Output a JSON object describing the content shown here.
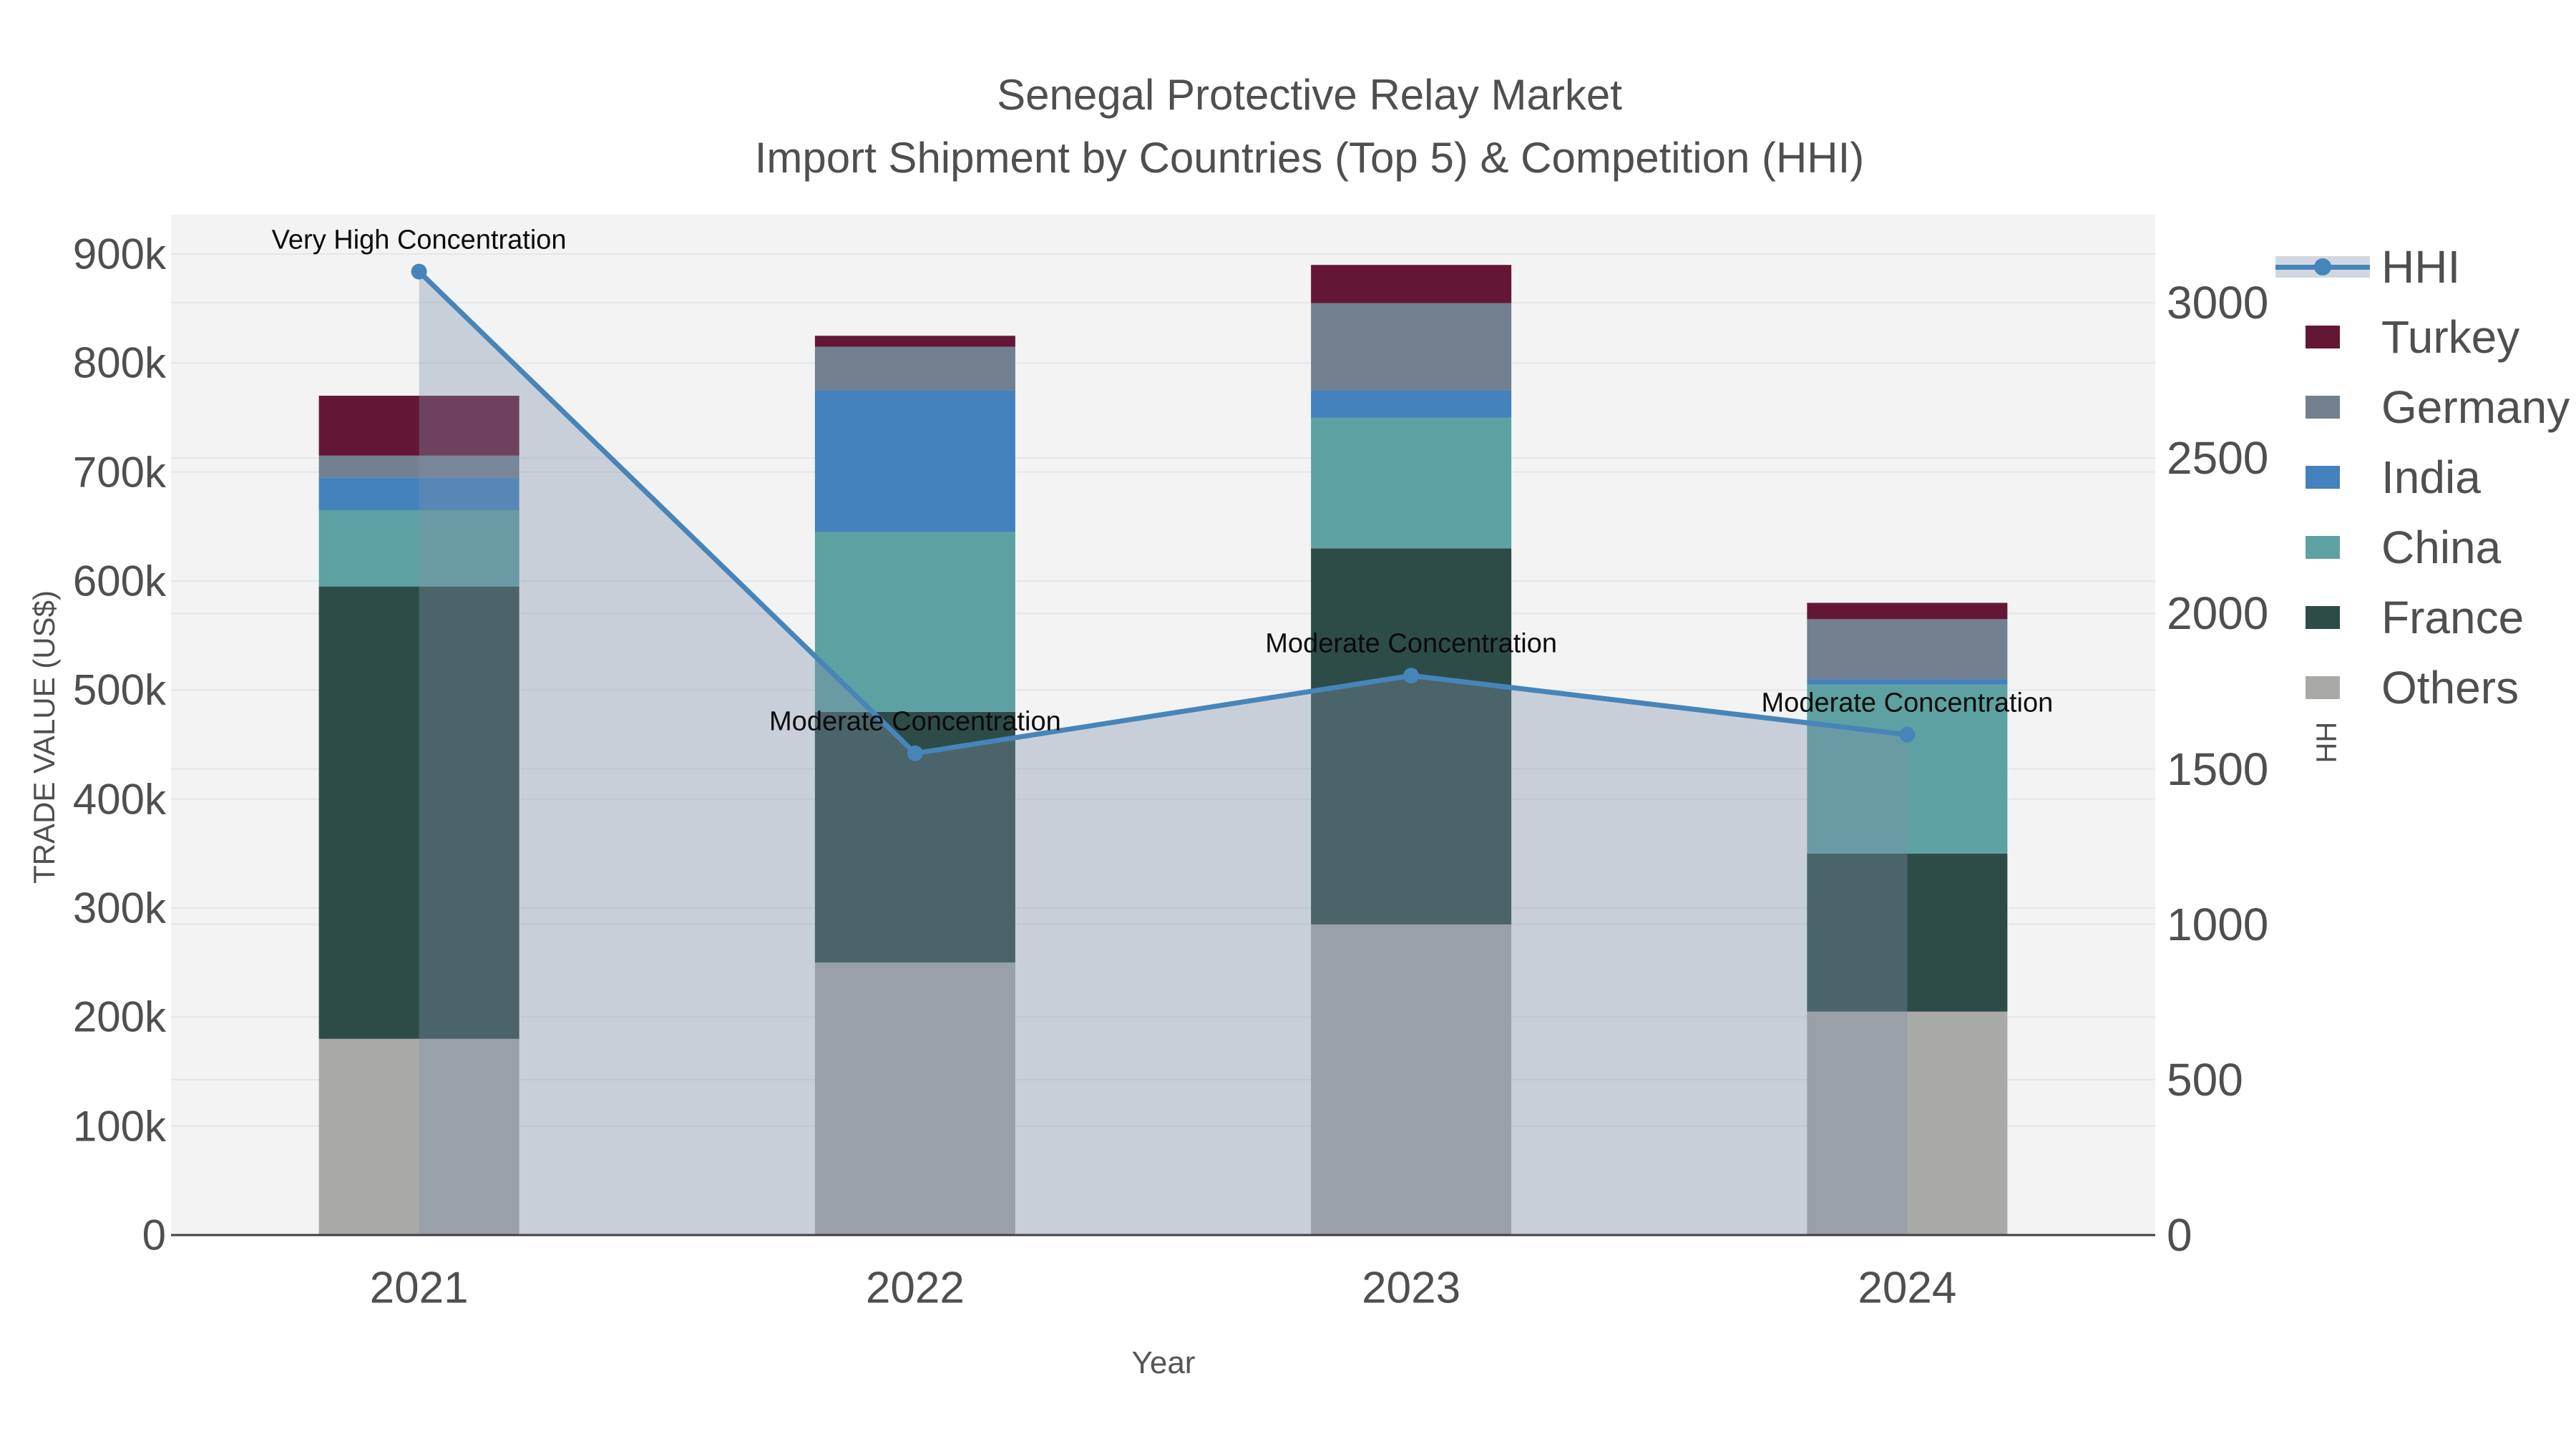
{
  "title": {
    "line1": "Senegal Protective Relay Market",
    "line2": "Import Shipment by Countries (Top 5) & Competition (HHI)"
  },
  "axes": {
    "left": {
      "title": "TRADE VALUE (US$)",
      "tick_labels": [
        "0",
        "100k",
        "200k",
        "300k",
        "400k",
        "500k",
        "600k",
        "700k",
        "800k",
        "900k"
      ],
      "tick_values": [
        0,
        100000,
        200000,
        300000,
        400000,
        500000,
        600000,
        700000,
        800000,
        900000
      ],
      "range": [
        0,
        900000
      ]
    },
    "right": {
      "title": "HHI",
      "tick_labels": [
        "0",
        "500",
        "1000",
        "1500",
        "2000",
        "2500",
        "3000"
      ],
      "tick_values": [
        0,
        500,
        1000,
        1500,
        2000,
        2500,
        3000
      ],
      "range": [
        0,
        3000
      ]
    },
    "x": {
      "title": "Year",
      "categories": [
        "2021",
        "2022",
        "2023",
        "2024"
      ]
    }
  },
  "legend": {
    "items": [
      {
        "label": "HHI",
        "type": "line",
        "color": "#4685BA"
      },
      {
        "label": "Turkey",
        "type": "swatch",
        "color": "#641735"
      },
      {
        "label": "Germany",
        "type": "swatch",
        "color": "#72808F"
      },
      {
        "label": "India",
        "type": "swatch",
        "color": "#4382BD"
      },
      {
        "label": "China",
        "type": "swatch",
        "color": "#5EA1A2"
      },
      {
        "label": "France",
        "type": "swatch",
        "color": "#2D4C47"
      },
      {
        "label": "Others",
        "type": "swatch",
        "color": "#A9A9A7"
      }
    ]
  },
  "style": {
    "plot_bg": "#F3F3F3",
    "gridline": "#E5E6E8",
    "axis_line": "#404040",
    "hhi_line": "#4685BA",
    "hhi_fill": "rgba(128,144,168,0.36)"
  },
  "chart_data": {
    "type": [
      "bar",
      "line"
    ],
    "bar_mode": "stacked",
    "title": "Senegal Protective Relay Market — Import Shipment by Countries (Top 5) & Competition (HHI)",
    "xlabel": "Year",
    "ylabel_left": "TRADE VALUE (US$)",
    "ylabel_right": "HHI",
    "ylim_left": [
      0,
      900000
    ],
    "ylim_right": [
      0,
      3000
    ],
    "grid": true,
    "legend_position": "right",
    "categories": [
      "2021",
      "2022",
      "2023",
      "2024"
    ],
    "stack_order": "bottom_to_top",
    "series": [
      {
        "name": "Others",
        "color": "#A9A9A7",
        "values": [
          180000,
          250000,
          285000,
          205000
        ]
      },
      {
        "name": "France",
        "color": "#2D4C47",
        "values": [
          415000,
          230000,
          345000,
          145000
        ]
      },
      {
        "name": "China",
        "color": "#5EA1A2",
        "values": [
          70000,
          165000,
          120000,
          155000
        ]
      },
      {
        "name": "India",
        "color": "#4382BD",
        "values": [
          30000,
          130000,
          25000,
          5000
        ]
      },
      {
        "name": "Germany",
        "color": "#72808F",
        "values": [
          20000,
          40000,
          80000,
          55000
        ]
      },
      {
        "name": "Turkey",
        "color": "#641735",
        "values": [
          55000,
          10000,
          35000,
          15000
        ]
      }
    ],
    "bar_totals": [
      770000,
      825000,
      890000,
      580000
    ],
    "hhi": {
      "name": "HHI",
      "color": "#4685BA",
      "values": [
        3100,
        1550,
        1800,
        1610
      ],
      "area_fill": "rgba(128,144,168,0.36)"
    },
    "annotations": [
      {
        "category": "2021",
        "text": "Very High Concentration"
      },
      {
        "category": "2022",
        "text": "Moderate Concentration"
      },
      {
        "category": "2023",
        "text": "Moderate Concentration"
      },
      {
        "category": "2024",
        "text": "Moderate Concentration"
      }
    ]
  }
}
